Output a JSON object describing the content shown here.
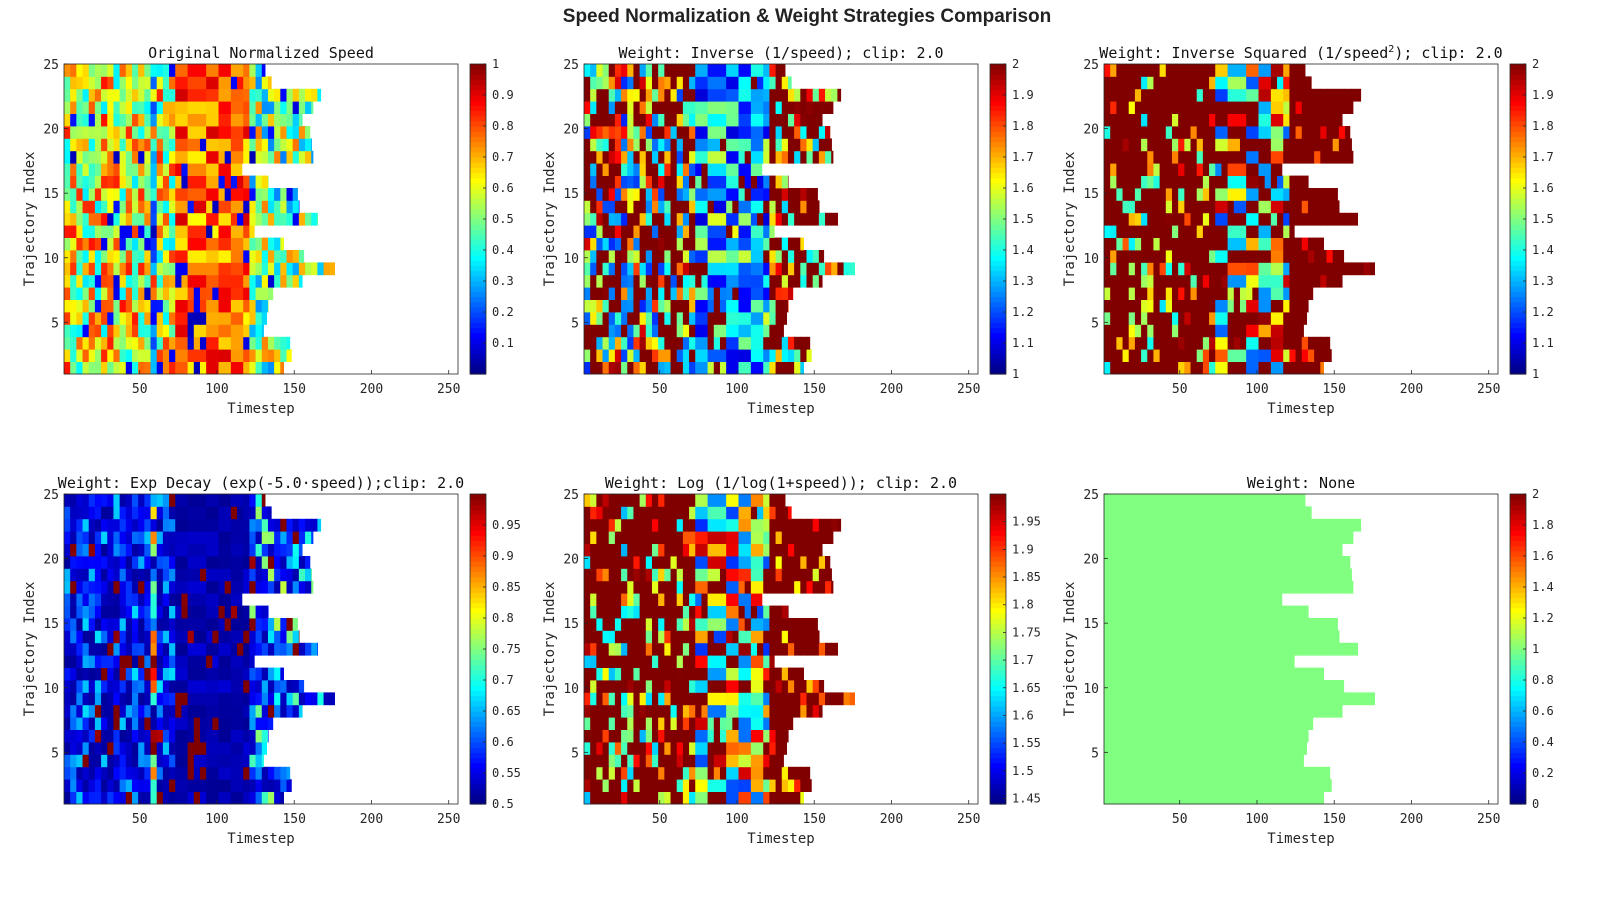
{
  "figure_title": "Speed Normalization & Weight Strategies Comparison",
  "chart_data": [
    {
      "type": "heatmap",
      "title": "Original Normalized Speed",
      "xlabel": "Timestep",
      "ylabel": "Trajectory Index",
      "xticks": [
        50,
        100,
        150,
        200,
        250
      ],
      "yticks": [
        5,
        10,
        15,
        20,
        25
      ],
      "xlim": [
        1,
        256
      ],
      "ylim": [
        1,
        25
      ],
      "colormap": "jet",
      "clim": [
        0,
        1
      ],
      "colorbar_ticks": [
        "0.1",
        "0.2",
        "0.3",
        "0.4",
        "0.5",
        "0.6",
        "0.7",
        "0.8",
        "0.9",
        "1"
      ],
      "colorbar_values": [
        0.1,
        0.2,
        0.3,
        0.4,
        0.5,
        0.6,
        0.7,
        0.8,
        0.9,
        1
      ],
      "trajectory_lengths": [
        143,
        148,
        147,
        130,
        132,
        133,
        136,
        155,
        176,
        156,
        143,
        124,
        165,
        153,
        152,
        133,
        116,
        162,
        161,
        160,
        155,
        162,
        167,
        135,
        131
      ],
      "value_field": "speed",
      "grid": false
    },
    {
      "type": "heatmap",
      "title": "Weight: Inverse (1/speed); clip: 2.0",
      "xlabel": "Timestep",
      "ylabel": "Trajectory Index",
      "xticks": [
        50,
        100,
        150,
        200,
        250
      ],
      "yticks": [
        5,
        10,
        15,
        20,
        25
      ],
      "xlim": [
        1,
        256
      ],
      "ylim": [
        1,
        25
      ],
      "colormap": "jet",
      "clim": [
        1,
        2
      ],
      "colorbar_ticks": [
        "1",
        "1.1",
        "1.2",
        "1.3",
        "1.4",
        "1.5",
        "1.6",
        "1.7",
        "1.8",
        "1.9",
        "2"
      ],
      "colorbar_values": [
        1,
        1.1,
        1.2,
        1.3,
        1.4,
        1.5,
        1.6,
        1.7,
        1.8,
        1.9,
        2
      ],
      "trajectory_lengths": [
        143,
        148,
        147,
        130,
        132,
        133,
        136,
        155,
        176,
        156,
        143,
        124,
        165,
        153,
        152,
        133,
        116,
        162,
        161,
        160,
        155,
        162,
        167,
        135,
        131
      ],
      "value_field": "inverse",
      "grid": false
    },
    {
      "type": "heatmap",
      "title_prefix": "Weight: Inverse Squared (1/speed",
      "title_sup": "2",
      "title_suffix": "); clip: 2.0",
      "xlabel": "Timestep",
      "ylabel": "Trajectory Index",
      "xticks": [
        50,
        100,
        150,
        200,
        250
      ],
      "yticks": [
        5,
        10,
        15,
        20,
        25
      ],
      "xlim": [
        1,
        256
      ],
      "ylim": [
        1,
        25
      ],
      "colormap": "jet",
      "clim": [
        1,
        2
      ],
      "colorbar_ticks": [
        "1",
        "1.1",
        "1.2",
        "1.3",
        "1.4",
        "1.5",
        "1.6",
        "1.7",
        "1.8",
        "1.9",
        "2"
      ],
      "colorbar_values": [
        1,
        1.1,
        1.2,
        1.3,
        1.4,
        1.5,
        1.6,
        1.7,
        1.8,
        1.9,
        2
      ],
      "trajectory_lengths": [
        143,
        148,
        147,
        130,
        132,
        133,
        136,
        155,
        176,
        156,
        143,
        124,
        165,
        153,
        152,
        133,
        116,
        162,
        161,
        160,
        155,
        162,
        167,
        135,
        131
      ],
      "value_field": "inverse_squared",
      "grid": false
    },
    {
      "type": "heatmap",
      "title": "Weight: Exp Decay (exp(-5.0·speed));clip: 2.0",
      "xlabel": "Timestep",
      "ylabel": "Trajectory Index",
      "xticks": [
        50,
        100,
        150,
        200,
        250
      ],
      "yticks": [
        5,
        10,
        15,
        20,
        25
      ],
      "xlim": [
        1,
        256
      ],
      "ylim": [
        1,
        25
      ],
      "colormap": "jet",
      "clim": [
        0.5,
        1
      ],
      "colorbar_ticks": [
        "0.5",
        "0.55",
        "0.6",
        "0.65",
        "0.7",
        "0.75",
        "0.8",
        "0.85",
        "0.9",
        "0.95"
      ],
      "colorbar_values": [
        0.5,
        0.55,
        0.6,
        0.65,
        0.7,
        0.75,
        0.8,
        0.85,
        0.9,
        0.95
      ],
      "trajectory_lengths": [
        143,
        148,
        147,
        130,
        132,
        133,
        136,
        155,
        176,
        156,
        143,
        124,
        165,
        153,
        152,
        133,
        116,
        162,
        161,
        160,
        155,
        162,
        167,
        135,
        131
      ],
      "value_field": "exp_decay",
      "grid": false
    },
    {
      "type": "heatmap",
      "title": "Weight: Log (1/log(1+speed)); clip: 2.0",
      "xlabel": "Timestep",
      "ylabel": "Trajectory Index",
      "xticks": [
        50,
        100,
        150,
        200,
        250
      ],
      "yticks": [
        5,
        10,
        15,
        20,
        25
      ],
      "xlim": [
        1,
        256
      ],
      "ylim": [
        1,
        25
      ],
      "colormap": "jet",
      "clim": [
        1.44,
        2
      ],
      "colorbar_ticks": [
        "1.45",
        "1.5",
        "1.55",
        "1.6",
        "1.65",
        "1.7",
        "1.75",
        "1.8",
        "1.85",
        "1.9",
        "1.95"
      ],
      "colorbar_values": [
        1.45,
        1.5,
        1.55,
        1.6,
        1.65,
        1.7,
        1.75,
        1.8,
        1.85,
        1.9,
        1.95
      ],
      "trajectory_lengths": [
        143,
        148,
        147,
        130,
        132,
        133,
        136,
        155,
        176,
        156,
        143,
        124,
        165,
        153,
        152,
        133,
        116,
        162,
        161,
        160,
        155,
        162,
        167,
        135,
        131
      ],
      "value_field": "log",
      "grid": false
    },
    {
      "type": "heatmap",
      "title": "Weight: None",
      "xlabel": "Timestep",
      "ylabel": "Trajectory Index",
      "xticks": [
        50,
        100,
        150,
        200,
        250
      ],
      "yticks": [
        5,
        10,
        15,
        20,
        25
      ],
      "xlim": [
        1,
        256
      ],
      "ylim": [
        1,
        25
      ],
      "colormap": "jet",
      "clim": [
        0,
        2
      ],
      "colorbar_ticks": [
        "0",
        "0.2",
        "0.4",
        "0.6",
        "0.8",
        "1",
        "1.2",
        "1.4",
        "1.6",
        "1.8",
        "2"
      ],
      "colorbar_values": [
        0,
        0.2,
        0.4,
        0.6,
        0.8,
        1,
        1.2,
        1.4,
        1.6,
        1.8,
        2
      ],
      "trajectory_lengths": [
        143,
        148,
        147,
        130,
        132,
        133,
        136,
        155,
        176,
        156,
        143,
        124,
        165,
        153,
        152,
        133,
        116,
        162,
        161,
        160,
        155,
        162,
        167,
        135,
        131
      ],
      "value_field": "constant",
      "constant_value": 1,
      "grid": false
    }
  ]
}
